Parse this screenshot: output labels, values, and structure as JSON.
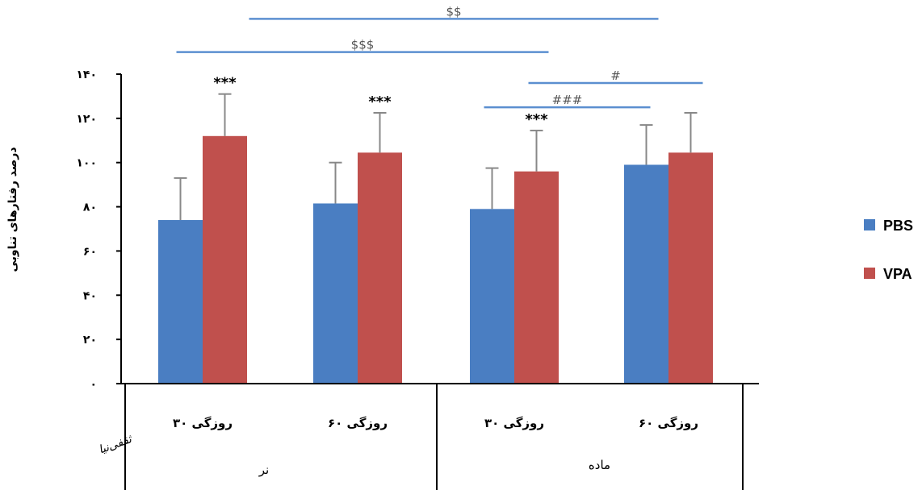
{
  "chart_data": {
    "type": "bar",
    "ylabel": "درصد رفتارهای تناوبی",
    "ylim": [
      0,
      140
    ],
    "yticks": [
      {
        "value": 0,
        "label": "۰"
      },
      {
        "value": 20,
        "label": "۲۰"
      },
      {
        "value": 40,
        "label": "۴۰"
      },
      {
        "value": 60,
        "label": "۶۰"
      },
      {
        "value": 80,
        "label": "۸۰"
      },
      {
        "value": 100,
        "label": "۱۰۰"
      },
      {
        "value": 120,
        "label": "۱۲۰"
      },
      {
        "value": 140,
        "label": "۱۴۰"
      }
    ],
    "categories": [
      "۳۰ روزگی",
      "۶۰ روزگی",
      "۳۰ روزگی",
      "۶۰ روزگی"
    ],
    "groups": [
      {
        "label": "نر",
        "categories": [
          0,
          1
        ]
      },
      {
        "label": "ماده",
        "categories": [
          2,
          3
        ]
      }
    ],
    "series": [
      {
        "name": "PBS",
        "color": "#4A7EC2",
        "values": [
          74,
          81.5,
          79,
          99
        ],
        "errors": [
          19,
          18.5,
          18.5,
          18
        ]
      },
      {
        "name": "VPA",
        "color": "#C0504D",
        "values": [
          112,
          104.5,
          96,
          104.5
        ],
        "errors": [
          19,
          18,
          18.5,
          18
        ]
      }
    ],
    "annotations": [
      {
        "text": "***",
        "category": 0,
        "series": 1
      },
      {
        "text": "***",
        "category": 1,
        "series": 1
      },
      {
        "text": "***",
        "category": 2,
        "series": 1
      }
    ],
    "comparisons": [
      {
        "text": "$$",
        "from": {
          "category": 0,
          "series": 1
        },
        "to": {
          "category": 3,
          "series": 0
        },
        "level": 165
      },
      {
        "text": "$$$",
        "from": {
          "category": 0,
          "series": 0
        },
        "to": {
          "category": 2,
          "series": 1
        },
        "level": 150
      },
      {
        "text": "#",
        "from": {
          "category": 2,
          "series": 1
        },
        "to": {
          "category": 3,
          "series": 1
        },
        "level": 136
      },
      {
        "text": "###",
        "from": {
          "category": 2,
          "series": 0
        },
        "to": {
          "category": 3,
          "series": 0
        },
        "level": 125
      }
    ],
    "legend_position": "right",
    "grid": false
  },
  "watermark": "ثقفی‌نیا"
}
